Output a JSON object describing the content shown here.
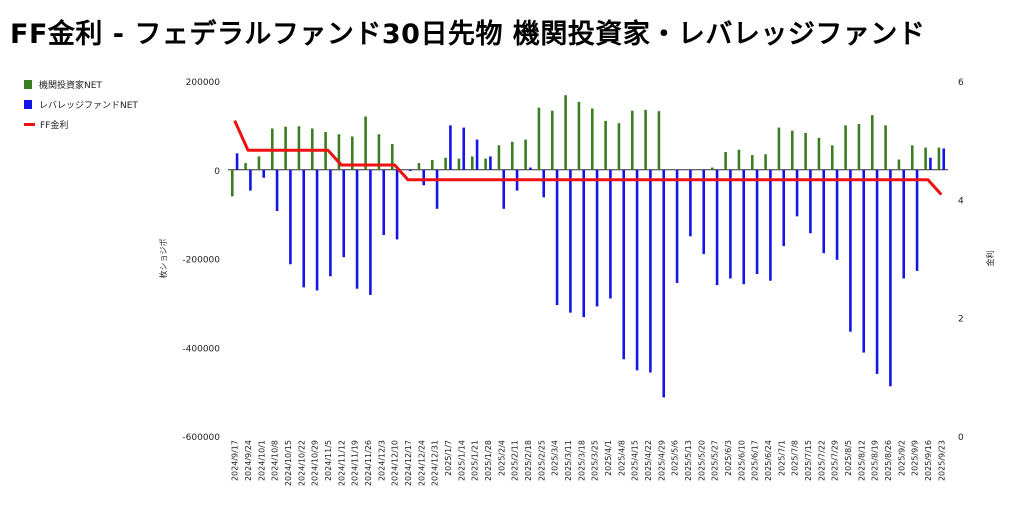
{
  "page": {
    "title": "FF金利 - フェデラルファンド30日先物 機関投資家・レバレッジファンド"
  },
  "legend": [
    {
      "label": "機関投資家NET",
      "color": "#3a7d22"
    },
    {
      "label": "レバレッジファンドNET",
      "color": "#1414e6"
    },
    {
      "label": "FF金利",
      "color": "#ee1111"
    }
  ],
  "chart_data": {
    "type": "bar",
    "title": "FF金利 - フェデラルファンド30日先物 機関投資家・レバレッジファンド",
    "ylabel": "枚ショジポ",
    "y2label": "金利",
    "ylim": [
      -600000,
      200000
    ],
    "y2lim": [
      0,
      6
    ],
    "yticks": [
      200000,
      0,
      -200000,
      -400000,
      -600000
    ],
    "y2ticks": [
      6,
      4,
      2,
      0
    ],
    "categories": [
      "2024/9/17",
      "2024/9/24",
      "2024/10/1",
      "2024/10/8",
      "2024/10/15",
      "2024/10/22",
      "2024/10/29",
      "2024/11/5",
      "2024/11/12",
      "2024/11/19",
      "2024/11/26",
      "2024/12/3",
      "2024/12/10",
      "2024/12/17",
      "2024/12/24",
      "2024/12/31",
      "2025/1/7",
      "2025/1/14",
      "2025/1/21",
      "2025/1/28",
      "2025/2/4",
      "2025/2/11",
      "2025/2/18",
      "2025/2/25",
      "2025/3/4",
      "2025/3/11",
      "2025/3/18",
      "2025/3/25",
      "2025/4/1",
      "2025/4/8",
      "2025/4/15",
      "2025/4/22",
      "2025/4/29",
      "2025/5/6",
      "2025/5/13",
      "2025/5/20",
      "2025/5/27",
      "2025/6/3",
      "2025/6/10",
      "2025/6/17",
      "2025/6/24",
      "2025/7/1",
      "2025/7/8",
      "2025/7/15",
      "2025/7/22",
      "2025/7/29",
      "2025/8/5",
      "2025/8/12",
      "2025/8/19",
      "2025/8/26",
      "2025/9/2",
      "2025/9/9",
      "2025/9/16",
      "2025/9/23"
    ],
    "series": [
      {
        "name": "機関投資家NET",
        "type": "bar",
        "axis": "left",
        "color": "#3a7d22",
        "values": [
          -60000,
          15000,
          30000,
          93000,
          97000,
          98000,
          93000,
          85000,
          80000,
          75000,
          120000,
          80000,
          58000,
          0,
          15000,
          22000,
          27000,
          25000,
          30000,
          25000,
          55000,
          63000,
          68000,
          140000,
          133000,
          168000,
          153000,
          138000,
          110000,
          105000,
          133000,
          135000,
          132000,
          0,
          0,
          0,
          5000,
          40000,
          45000,
          33000,
          35000,
          95000,
          88000,
          83000,
          72000,
          55000,
          100000,
          103000,
          123000,
          100000,
          23000,
          55000,
          50000,
          50000
        ]
      },
      {
        "name": "レバレッジファンドNET",
        "type": "bar",
        "axis": "left",
        "color": "#1414e6",
        "values": [
          37000,
          -47000,
          -18000,
          -93000,
          -213000,
          -265000,
          -272000,
          -240000,
          -197000,
          -268000,
          -282000,
          -147000,
          -157000,
          -3000,
          -35000,
          -88000,
          100000,
          95000,
          68000,
          30000,
          -88000,
          -47000,
          5000,
          -62000,
          -305000,
          -322000,
          -332000,
          -308000,
          -290000,
          -427000,
          -452000,
          -457000,
          -513000,
          -255000,
          -150000,
          -190000,
          -260000,
          -245000,
          -258000,
          -235000,
          -250000,
          -172000,
          -105000,
          -143000,
          -188000,
          -203000,
          -365000,
          -412000,
          -460000,
          -488000,
          -245000,
          -228000,
          27000,
          48000
        ]
      },
      {
        "name": "FF金利",
        "type": "line",
        "axis": "right",
        "color": "#ee1111",
        "values": [
          5.33,
          4.83,
          4.83,
          4.83,
          4.83,
          4.83,
          4.83,
          4.83,
          4.58,
          4.58,
          4.58,
          4.58,
          4.58,
          4.33,
          4.33,
          4.33,
          4.33,
          4.33,
          4.33,
          4.33,
          4.33,
          4.33,
          4.33,
          4.33,
          4.33,
          4.33,
          4.33,
          4.33,
          4.33,
          4.33,
          4.33,
          4.33,
          4.33,
          4.33,
          4.33,
          4.33,
          4.33,
          4.33,
          4.33,
          4.33,
          4.33,
          4.33,
          4.33,
          4.33,
          4.33,
          4.33,
          4.33,
          4.33,
          4.33,
          4.33,
          4.33,
          4.33,
          4.33,
          4.08
        ]
      }
    ]
  }
}
